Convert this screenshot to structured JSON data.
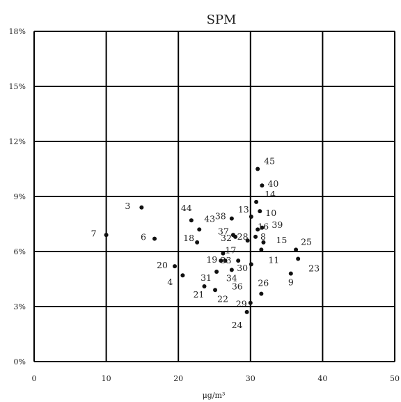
{
  "chart_data": {
    "type": "scatter",
    "title": "SPM",
    "xlabel": "μg/m³",
    "ylabel": "",
    "xlim": [
      0,
      50
    ],
    "ylim": [
      0,
      18
    ],
    "x_ticks": [
      "0",
      "10",
      "20",
      "30",
      "40",
      "50"
    ],
    "y_ticks": [
      "0%",
      "3%",
      "6%",
      "9%",
      "12%",
      "15%",
      "18%"
    ],
    "grid": true,
    "colors": {
      "marker": "#111111",
      "grid": "#000000",
      "text": "#222222"
    },
    "points": [
      {
        "label": "3",
        "x": 14.9,
        "y": 8.4
      },
      {
        "label": "4",
        "x": 20.6,
        "y": 4.7
      },
      {
        "label": "6",
        "x": 16.7,
        "y": 6.7
      },
      {
        "label": "7",
        "x": 10.0,
        "y": 6.9
      },
      {
        "label": "8",
        "x": 30.7,
        "y": 6.8
      },
      {
        "label": "9",
        "x": 35.6,
        "y": 4.8
      },
      {
        "label": "10",
        "x": 31.3,
        "y": 8.2
      },
      {
        "label": "11",
        "x": 31.5,
        "y": 6.1
      },
      {
        "label": "13",
        "x": 30.1,
        "y": 7.9
      },
      {
        "label": "14",
        "x": 30.8,
        "y": 8.7
      },
      {
        "label": "15",
        "x": 31.8,
        "y": 6.5
      },
      {
        "label": "16",
        "x": 31.0,
        "y": 7.2
      },
      {
        "label": "17",
        "x": 26.2,
        "y": 5.9
      },
      {
        "label": "18",
        "x": 22.6,
        "y": 6.5
      },
      {
        "label": "19",
        "x": 25.9,
        "y": 5.5
      },
      {
        "label": "20",
        "x": 19.5,
        "y": 5.2
      },
      {
        "label": "21",
        "x": 23.6,
        "y": 4.1
      },
      {
        "label": "22",
        "x": 25.1,
        "y": 3.9
      },
      {
        "label": "23",
        "x": 36.6,
        "y": 5.6
      },
      {
        "label": "24",
        "x": 29.5,
        "y": 2.7
      },
      {
        "label": "25",
        "x": 36.3,
        "y": 6.1
      },
      {
        "label": "26",
        "x": 31.5,
        "y": 3.7
      },
      {
        "label": "28",
        "x": 29.6,
        "y": 6.6
      },
      {
        "label": "29",
        "x": 30.0,
        "y": 3.2
      },
      {
        "label": "30",
        "x": 28.3,
        "y": 5.5
      },
      {
        "label": "31",
        "x": 25.3,
        "y": 4.9
      },
      {
        "label": "32",
        "x": 27.9,
        "y": 6.8
      },
      {
        "label": "33",
        "x": 26.5,
        "y": 5.5
      },
      {
        "label": "34",
        "x": 27.4,
        "y": 5.0
      },
      {
        "label": "36",
        "x": 30.1,
        "y": 5.3
      },
      {
        "label": "37",
        "x": 27.6,
        "y": 6.9
      },
      {
        "label": "38",
        "x": 27.4,
        "y": 7.8
      },
      {
        "label": "39",
        "x": 31.6,
        "y": 7.3
      },
      {
        "label": "40",
        "x": 31.6,
        "y": 9.6
      },
      {
        "label": "43",
        "x": 22.9,
        "y": 7.2
      },
      {
        "label": "44",
        "x": 21.8,
        "y": 7.7
      },
      {
        "label": "45",
        "x": 31.0,
        "y": 10.5
      }
    ]
  }
}
